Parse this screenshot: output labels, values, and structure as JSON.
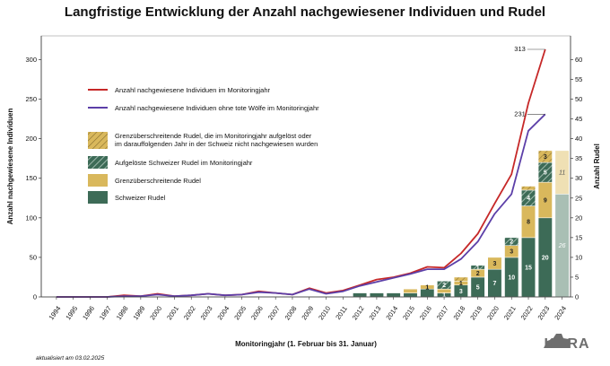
{
  "chart_data": {
    "type": "bar+line",
    "title": "Langfristige Entwicklung der Anzahl nachgewiesener Individuen und Rudel",
    "xlabel": "Monitoringjahr (1. Februar bis 31. Januar)",
    "ylabel_left": "Anzahl nachgewiesene Individuen",
    "ylabel_right": "Anzahl Rudel",
    "ylim_left": [
      0,
      330
    ],
    "ylim_right": [
      0,
      66
    ],
    "yticks_left": [
      "0",
      "50",
      "100",
      "150",
      "200",
      "250",
      "300"
    ],
    "yticks_right": [
      "0",
      "5",
      "10",
      "15",
      "20",
      "25",
      "30",
      "35",
      "40",
      "45",
      "50",
      "55",
      "60"
    ],
    "categories": [
      "1994",
      "1995",
      "1996",
      "1997",
      "1998",
      "1999",
      "2000",
      "2001",
      "2002",
      "2003",
      "2004",
      "2005",
      "2006",
      "2007",
      "2008",
      "2009",
      "2010",
      "2011",
      "2012",
      "2013",
      "2014",
      "2015",
      "2016",
      "2017",
      "2018",
      "2019",
      "2020",
      "2021",
      "2022",
      "2023",
      "2024"
    ],
    "line_series": [
      {
        "name": "Anzahl nachgewiesene Individuen im Monitoringjahr",
        "color": "#c62828",
        "values": [
          0,
          0,
          0,
          0,
          2,
          1,
          4,
          1,
          2,
          4,
          2,
          3,
          7,
          5,
          3,
          11,
          5,
          8,
          15,
          22,
          25,
          30,
          38,
          37,
          55,
          80,
          118,
          155,
          245,
          313,
          null
        ]
      },
      {
        "name": "Anzahl nachgewiesene Individuen ohne tote Wölfe im Monitoringjahr",
        "color": "#5c3fa8",
        "values": [
          0,
          0,
          0,
          0,
          1,
          1,
          3,
          1,
          2,
          4,
          2,
          3,
          6,
          5,
          3,
          10,
          4,
          7,
          14,
          19,
          24,
          29,
          35,
          35,
          48,
          70,
          105,
          130,
          210,
          231,
          null
        ]
      }
    ],
    "line_annotations": [
      {
        "text": "313",
        "year": "2023",
        "value": 313
      },
      {
        "text": "231",
        "year": "2023",
        "value": 231
      }
    ],
    "bar_series": [
      {
        "name": "Schweizer Rudel",
        "color": "#3d6b57",
        "values": [
          0,
          0,
          0,
          0,
          0,
          0,
          0,
          0,
          0,
          0,
          0,
          0,
          0,
          0,
          0,
          0,
          0,
          0,
          1,
          1,
          1,
          1,
          2,
          1,
          3,
          5,
          7,
          10,
          15,
          20,
          26
        ]
      },
      {
        "name": "Grenzüberschreitende Rudel",
        "color": "#d9b85c",
        "values": [
          0,
          0,
          0,
          0,
          0,
          0,
          0,
          0,
          0,
          0,
          0,
          0,
          0,
          0,
          0,
          0,
          0,
          0,
          0,
          0,
          0,
          1,
          1,
          1,
          1,
          2,
          3,
          3,
          8,
          9,
          11
        ]
      },
      {
        "name": "Aufgelöste Schweizer Rudel im Monitoringjahr",
        "color": "#3d6b57",
        "values": [
          0,
          0,
          0,
          0,
          0,
          0,
          0,
          0,
          0,
          0,
          0,
          0,
          0,
          0,
          0,
          0,
          0,
          0,
          0,
          0,
          0,
          0,
          0,
          2,
          0,
          1,
          0,
          2,
          4,
          5,
          0
        ]
      },
      {
        "name": "Grenzüberschreitende Rudel, die im Monitoringjahr aufgelöst oder im darauffolgenden Jahr in der Schweiz nicht nachgewiesen wurden",
        "color": "#d9b85c",
        "values": [
          0,
          0,
          0,
          0,
          0,
          0,
          0,
          0,
          0,
          0,
          0,
          0,
          0,
          0,
          0,
          0,
          0,
          0,
          0,
          0,
          0,
          0,
          0,
          0,
          1,
          0,
          0,
          0,
          1,
          3,
          0
        ]
      }
    ],
    "bar_labels": [
      {
        "year": "2016",
        "series": 1,
        "text": "1"
      },
      {
        "year": "2017",
        "series": 0,
        "text": "1"
      },
      {
        "year": "2017",
        "series": 2,
        "text": "2"
      },
      {
        "year": "2018",
        "series": 0,
        "text": "3"
      },
      {
        "year": "2018",
        "series": 1,
        "text": "1"
      },
      {
        "year": "2019",
        "series": 0,
        "text": "5"
      },
      {
        "year": "2019",
        "series": 1,
        "text": "2"
      },
      {
        "year": "2019",
        "series": 2,
        "text": "1"
      },
      {
        "year": "2020",
        "series": 0,
        "text": "7"
      },
      {
        "year": "2020",
        "series": 1,
        "text": "3"
      },
      {
        "year": "2021",
        "series": 0,
        "text": "10"
      },
      {
        "year": "2021",
        "series": 1,
        "text": "3"
      },
      {
        "year": "2021",
        "series": 2,
        "text": "2"
      },
      {
        "year": "2022",
        "series": 0,
        "text": "15"
      },
      {
        "year": "2022",
        "series": 1,
        "text": "8"
      },
      {
        "year": "2022",
        "series": 2,
        "text": "4"
      },
      {
        "year": "2023",
        "series": 0,
        "text": "20"
      },
      {
        "year": "2023",
        "series": 1,
        "text": "9"
      },
      {
        "year": "2023",
        "series": 2,
        "text": "5"
      },
      {
        "year": "2023",
        "series": 3,
        "text": "3"
      },
      {
        "year": "2024",
        "series": 0,
        "text": "26"
      },
      {
        "year": "2024",
        "series": 1,
        "text": "11"
      }
    ],
    "last_year_note": "2024 bars lighter",
    "legend_position": "upper-left inside plot",
    "grid": false
  },
  "footer": {
    "updated": "aktualisiert am 03.02.2025",
    "logo": "KORA"
  }
}
